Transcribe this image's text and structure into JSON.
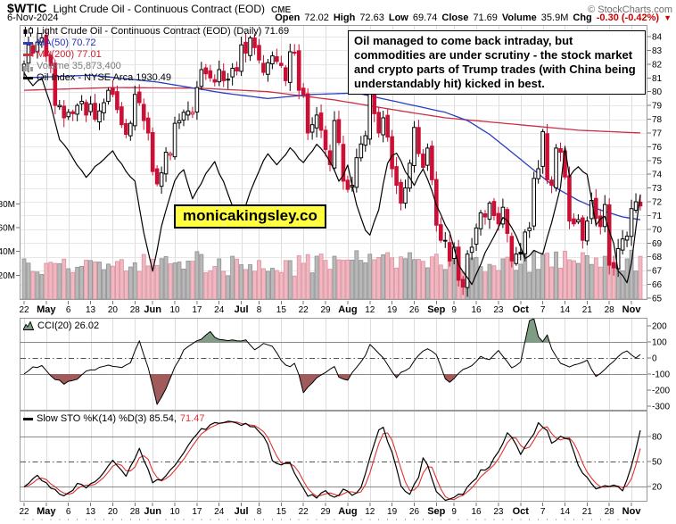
{
  "header": {
    "symbol": "$WTIC",
    "title": "Light Crude Oil - Continuous Contract (EOD)",
    "exchange": "CME",
    "source": "© StockCharts.com",
    "date": "6-Nov-2024",
    "quote": {
      "open_label": "Open",
      "open": "72.02",
      "high_label": "High",
      "high": "72.63",
      "low_label": "Low",
      "low": "69.74",
      "close_label": "Close",
      "close": "71.69",
      "volume_label": "Volume",
      "volume": "35.9M",
      "chg_label": "Chg",
      "chg": "-0.30 (-0.42%)",
      "chg_arrow": "▼"
    }
  },
  "main_legend": {
    "title": "Light Crude Oil - Continuous Contract (EOD) (Daily) 71.69",
    "ma50": "MA(50) 70.72",
    "ma200": "MA(200) 77.01",
    "volume": "Volume 35,873,400",
    "oil_index": "Oil Index - NYSE Arca 1930.49"
  },
  "annotation": "Oil managed to come back intraday, but commodities are under scrutiny - the stock market and crypto parts of Trump trades (with China being understandably hit) kicked in best.",
  "watermark": "monicakingsley.co",
  "cci_panel": {
    "label": "CCI(20) 26.02"
  },
  "sto_panel": {
    "label_k": "Slow STO %K(14) %D(3) 85.54,",
    "label_d": "71.47"
  },
  "x_axis": {
    "n_days": 140,
    "week_start_days": [
      0,
      5,
      10,
      15,
      20,
      25,
      29,
      34,
      39,
      44,
      49,
      53,
      58,
      63,
      68,
      73,
      78,
      83,
      88,
      93,
      97,
      102,
      107,
      112,
      117,
      122,
      127,
      132,
      137
    ],
    "labels": [
      "22",
      "May",
      "6",
      "13",
      "20",
      "28",
      "Jun",
      "10",
      "17",
      "24",
      "Jul",
      "8",
      "15",
      "22",
      "29",
      "Aug",
      "12",
      "19",
      "26",
      "Sep",
      "9",
      "16",
      "23",
      "Oct",
      "7",
      "14",
      "21",
      "28",
      "Nov"
    ]
  },
  "colors": {
    "candle_down": "#cc0f35",
    "candle_up_stroke": "#000000",
    "ma50": "#2a3cc0",
    "ma200": "#cc2e44",
    "oil_index": "#000000",
    "vol_up_fill": "#b9b9b9",
    "vol_up_stroke": "#8f8f8f",
    "vol_down_fill": "#f2b8c2",
    "vol_down_stroke": "#d9919f",
    "cci_fill_pos": "#7e9d82",
    "cci_fill_neg": "#a25b5b",
    "sto_d": "#e23232",
    "grid": "#e7e7e7",
    "week_grid": "#dedede",
    "panel_border": "#999999",
    "threshold": "#8a8a8a",
    "chg_red": "#cc0000",
    "watermark_bg": "#ffff3f"
  },
  "chart_data": [
    {
      "type": "candlestick",
      "title": "Light Crude Oil - Continuous Contract (EOD) (Daily)",
      "last_close": 71.69,
      "ylim": [
        64.9,
        84.8
      ],
      "y_ticks": [
        84,
        83,
        82,
        81,
        80,
        79,
        78,
        77,
        76,
        75,
        74,
        73,
        72,
        71,
        70,
        69,
        68,
        67,
        66,
        65
      ],
      "first_open": 81.5,
      "closes": [
        82.0,
        83.4,
        82.8,
        83.6,
        83.9,
        82.6,
        81.9,
        79.0,
        79.0,
        78.1,
        78.5,
        78.4,
        79.0,
        79.3,
        78.3,
        79.1,
        78.0,
        78.6,
        79.2,
        80.1,
        79.8,
        78.7,
        77.6,
        76.9,
        77.7,
        79.8,
        79.2,
        77.9,
        77.0,
        74.2,
        73.3,
        74.1,
        75.6,
        75.5,
        77.7,
        77.9,
        78.5,
        78.6,
        78.5,
        80.3,
        81.6,
        81.3,
        81.0,
        80.7,
        81.6,
        80.8,
        80.9,
        81.7,
        81.5,
        83.4,
        82.8,
        83.9,
        83.2,
        82.3,
        81.4,
        82.1,
        82.6,
        82.2,
        81.9,
        80.8,
        82.9,
        82.8,
        80.1,
        79.8,
        77.0,
        77.6,
        78.3,
        77.2,
        75.8,
        74.7,
        77.9,
        76.3,
        73.5,
        72.9,
        73.2,
        75.2,
        76.2,
        76.8,
        80.0,
        78.4,
        77.0,
        78.1,
        76.7,
        74.4,
        73.2,
        71.9,
        73.0,
        74.8,
        77.4,
        75.5,
        74.5,
        75.9,
        73.6,
        70.3,
        69.2,
        69.2,
        67.7,
        68.7,
        66.3,
        65.8,
        68.2,
        68.7,
        70.1,
        71.2,
        70.9,
        71.9,
        71.0,
        70.4,
        71.6,
        69.7,
        67.7,
        68.2,
        68.2,
        69.8,
        70.1,
        73.7,
        74.4,
        77.1,
        73.6,
        73.2,
        75.9,
        75.6,
        73.8,
        70.6,
        70.4,
        70.7,
        69.2,
        70.6,
        72.1,
        70.8,
        70.2,
        71.8,
        67.4,
        67.2,
        68.6,
        69.3,
        69.5,
        71.5,
        72.0,
        71.7
      ],
      "series": [
        {
          "name": "MA(50)",
          "last": 70.72,
          "anchors": [
            [
              0,
              81.0
            ],
            [
              15,
              81.2
            ],
            [
              30,
              80.7
            ],
            [
              45,
              79.9
            ],
            [
              55,
              79.5
            ],
            [
              65,
              79.8
            ],
            [
              75,
              79.9
            ],
            [
              85,
              79.2
            ],
            [
              95,
              78.5
            ],
            [
              100,
              77.9
            ],
            [
              105,
              76.9
            ],
            [
              110,
              75.6
            ],
            [
              115,
              74.3
            ],
            [
              120,
              73.0
            ],
            [
              125,
              72.1
            ],
            [
              130,
              71.4
            ],
            [
              135,
              70.9
            ],
            [
              139,
              70.7
            ]
          ]
        },
        {
          "name": "MA(200)",
          "last": 77.01,
          "anchors": [
            [
              0,
              80.1
            ],
            [
              20,
              80.3
            ],
            [
              40,
              80.25
            ],
            [
              55,
              80.0
            ],
            [
              70,
              79.4
            ],
            [
              85,
              78.6
            ],
            [
              95,
              78.1
            ],
            [
              105,
              77.8
            ],
            [
              115,
              77.5
            ],
            [
              125,
              77.2
            ],
            [
              139,
              77.0
            ]
          ]
        },
        {
          "name": "Oil Index - NYSE Arca",
          "last": 1930.49,
          "anchors": [
            [
              0,
              81.3
            ],
            [
              2,
              80.5
            ],
            [
              4,
              81.0
            ],
            [
              6,
              79.0
            ],
            [
              8,
              76.5
            ],
            [
              11,
              75.2
            ],
            [
              14,
              73.8
            ],
            [
              17,
              74.8
            ],
            [
              20,
              75.6
            ],
            [
              23,
              74.2
            ],
            [
              25,
              73.5
            ],
            [
              27,
              69.8
            ],
            [
              29,
              66.9
            ],
            [
              31,
              70.2
            ],
            [
              34,
              73.6
            ],
            [
              36,
              74.4
            ],
            [
              38,
              72.2
            ],
            [
              41,
              74.0
            ],
            [
              43,
              74.9
            ],
            [
              45,
              73.4
            ],
            [
              47,
              71.8
            ],
            [
              49,
              70.9
            ],
            [
              52,
              73.5
            ],
            [
              55,
              75.6
            ],
            [
              57,
              74.6
            ],
            [
              60,
              75.9
            ],
            [
              63,
              74.8
            ],
            [
              66,
              76.2
            ],
            [
              69,
              75.0
            ],
            [
              71,
              73.4
            ],
            [
              73,
              74.6
            ],
            [
              75,
              71.8
            ],
            [
              77,
              69.9
            ],
            [
              78,
              69.5
            ],
            [
              80,
              71.5
            ],
            [
              82,
              74.9
            ],
            [
              84,
              75.6
            ],
            [
              86,
              74.2
            ],
            [
              88,
              73.3
            ],
            [
              90,
              74.4
            ],
            [
              92,
              72.7
            ],
            [
              94,
              71.0
            ],
            [
              96,
              69.8
            ],
            [
              98,
              67.5
            ],
            [
              101,
              65.9
            ],
            [
              104,
              68.3
            ],
            [
              106,
              69.5
            ],
            [
              108,
              70.9
            ],
            [
              110,
              70.2
            ],
            [
              113,
              67.9
            ],
            [
              115,
              68.4
            ],
            [
              117,
              68.3
            ],
            [
              119,
              70.5
            ],
            [
              121,
              73.0
            ],
            [
              122,
              76.0
            ],
            [
              123,
              73.8
            ],
            [
              125,
              74.6
            ],
            [
              127,
              73.9
            ],
            [
              129,
              70.4
            ],
            [
              131,
              70.9
            ],
            [
              133,
              68.9
            ],
            [
              134,
              67.0
            ],
            [
              136,
              66.2
            ],
            [
              137,
              67.5
            ],
            [
              138,
              70.0
            ],
            [
              139,
              72.5
            ]
          ]
        }
      ],
      "volume": {
        "last": 35873400,
        "tick_values": [
          20,
          40,
          60,
          80
        ],
        "tick_labels": [
          "20M",
          "40M",
          "60M",
          "80M"
        ]
      }
    },
    {
      "type": "area-line",
      "name": "CCI(20)",
      "last": 26.02,
      "y_ticks": [
        200,
        100,
        0,
        -100,
        -200,
        -300
      ],
      "thresholds": [
        100,
        -100
      ],
      "anchors": [
        [
          0,
          -100
        ],
        [
          2,
          -60
        ],
        [
          4,
          -45
        ],
        [
          6,
          -115
        ],
        [
          9,
          -160
        ],
        [
          12,
          -125
        ],
        [
          14,
          -80
        ],
        [
          16,
          -70
        ],
        [
          19,
          -45
        ],
        [
          22,
          -60
        ],
        [
          24,
          -35
        ],
        [
          26,
          110
        ],
        [
          28,
          -60
        ],
        [
          30,
          -290
        ],
        [
          32,
          -190
        ],
        [
          34,
          -60
        ],
        [
          36,
          50
        ],
        [
          38,
          95
        ],
        [
          40,
          120
        ],
        [
          42,
          160
        ],
        [
          44,
          112
        ],
        [
          46,
          105
        ],
        [
          48,
          112
        ],
        [
          50,
          108
        ],
        [
          52,
          55
        ],
        [
          54,
          85
        ],
        [
          56,
          70
        ],
        [
          58,
          -15
        ],
        [
          60,
          -60
        ],
        [
          61,
          -35
        ],
        [
          62,
          -110
        ],
        [
          63,
          -210
        ],
        [
          64,
          -180
        ],
        [
          66,
          -125
        ],
        [
          68,
          -85
        ],
        [
          70,
          -50
        ],
        [
          71,
          -115
        ],
        [
          73,
          -140
        ],
        [
          75,
          -55
        ],
        [
          77,
          20
        ],
        [
          78,
          90
        ],
        [
          80,
          35
        ],
        [
          82,
          -45
        ],
        [
          84,
          -120
        ],
        [
          85,
          -95
        ],
        [
          87,
          -55
        ],
        [
          89,
          15
        ],
        [
          91,
          60
        ],
        [
          93,
          25
        ],
        [
          95,
          -135
        ],
        [
          96,
          -155
        ],
        [
          97,
          -125
        ],
        [
          99,
          -70
        ],
        [
          101,
          -45
        ],
        [
          103,
          5
        ],
        [
          105,
          -15
        ],
        [
          107,
          40
        ],
        [
          109,
          -25
        ],
        [
          110,
          -60
        ],
        [
          112,
          -20
        ],
        [
          114,
          230
        ],
        [
          115,
          250
        ],
        [
          116,
          135
        ],
        [
          117,
          100
        ],
        [
          118,
          140
        ],
        [
          119,
          55
        ],
        [
          121,
          -35
        ],
        [
          123,
          -60
        ],
        [
          125,
          -35
        ],
        [
          127,
          -15
        ],
        [
          129,
          -115
        ],
        [
          130,
          -95
        ],
        [
          132,
          -50
        ],
        [
          134,
          15
        ],
        [
          136,
          50
        ],
        [
          137,
          20
        ],
        [
          138,
          -5
        ],
        [
          139,
          26.02
        ]
      ]
    },
    {
      "type": "line",
      "name": "Slow STO %K(14) %D(3)",
      "k_last": 85.54,
      "d_last": 71.47,
      "y_ticks": [
        80,
        50,
        20
      ],
      "anchors_k": [
        [
          0,
          20
        ],
        [
          3,
          33
        ],
        [
          6,
          18
        ],
        [
          9,
          8
        ],
        [
          12,
          22
        ],
        [
          14,
          19
        ],
        [
          17,
          30
        ],
        [
          20,
          50
        ],
        [
          23,
          32
        ],
        [
          26,
          65
        ],
        [
          29,
          25
        ],
        [
          31,
          28
        ],
        [
          34,
          45
        ],
        [
          37,
          70
        ],
        [
          40,
          88
        ],
        [
          43,
          95
        ],
        [
          46,
          97
        ],
        [
          49,
          95
        ],
        [
          52,
          92
        ],
        [
          55,
          72
        ],
        [
          56,
          50
        ],
        [
          58,
          47
        ],
        [
          60,
          50
        ],
        [
          62,
          25
        ],
        [
          64,
          10
        ],
        [
          66,
          8
        ],
        [
          68,
          15
        ],
        [
          70,
          6
        ],
        [
          72,
          15
        ],
        [
          74,
          10
        ],
        [
          76,
          18
        ],
        [
          78,
          55
        ],
        [
          80,
          88
        ],
        [
          81,
          90
        ],
        [
          83,
          60
        ],
        [
          85,
          20
        ],
        [
          87,
          12
        ],
        [
          89,
          30
        ],
        [
          90,
          55
        ],
        [
          91,
          45
        ],
        [
          93,
          15
        ],
        [
          95,
          3
        ],
        [
          97,
          8
        ],
        [
          99,
          12
        ],
        [
          101,
          25
        ],
        [
          103,
          38
        ],
        [
          105,
          45
        ],
        [
          107,
          60
        ],
        [
          109,
          85
        ],
        [
          111,
          70
        ],
        [
          112,
          58
        ],
        [
          114,
          75
        ],
        [
          116,
          95
        ],
        [
          118,
          88
        ],
        [
          119,
          72
        ],
        [
          121,
          80
        ],
        [
          123,
          75
        ],
        [
          125,
          45
        ],
        [
          127,
          30
        ],
        [
          129,
          18
        ],
        [
          131,
          22
        ],
        [
          133,
          22
        ],
        [
          135,
          15
        ],
        [
          137,
          45
        ],
        [
          139,
          85.54
        ]
      ]
    }
  ]
}
